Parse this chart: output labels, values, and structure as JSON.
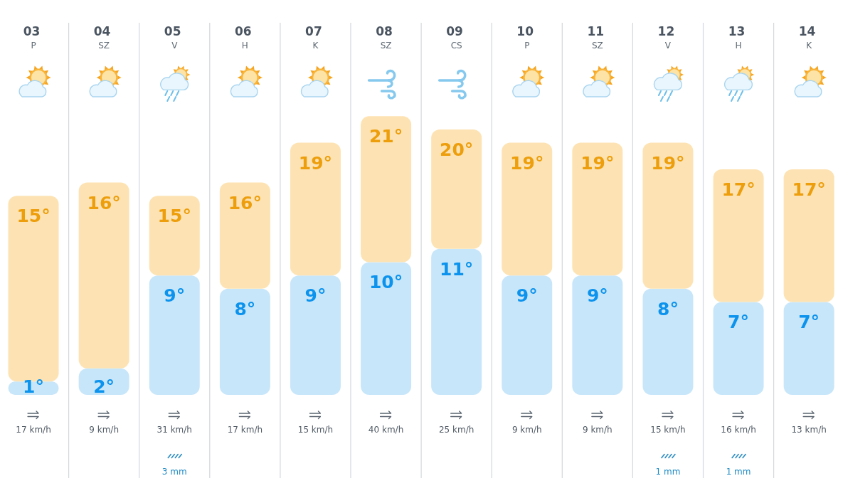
{
  "chart_data": {
    "type": "bar",
    "stacked": true,
    "categories": [
      "03\nP",
      "04\nSZ",
      "05\nV",
      "06\nH",
      "07\nK",
      "08\nSZ",
      "09\nCS",
      "10\nP",
      "11\nSZ",
      "12\nV",
      "13\nH",
      "14\nK"
    ],
    "series": [
      {
        "color": "#c8e6fa",
        "values": [
          1,
          2,
          9,
          8,
          9,
          10,
          11,
          9,
          9,
          8,
          7,
          7
        ],
        "value_labels": [
          "1°",
          "2°",
          "9°",
          "8°",
          "9°",
          "10°",
          "11°",
          "9°",
          "9°",
          "8°",
          "7°",
          "7°"
        ]
      },
      {
        "color": "#fde3b3",
        "values": [
          14,
          14,
          6,
          8,
          10,
          11,
          9,
          10,
          10,
          11,
          10,
          10
        ]
      }
    ],
    "totals": [
      "15°",
      "16°",
      "15°",
      "16°",
      "19°",
      "21°",
      "20°",
      "19°",
      "19°",
      "19°",
      "17°",
      "17°"
    ],
    "grid": "x",
    "tick_labels": "x",
    "annotations": [
      "17 km/h",
      "9 km/h",
      "31 km/h",
      "17 km/h",
      "15 km/h",
      "40 km/h",
      "25 km/h",
      "9 km/h",
      "9 km/h",
      "15 km/h",
      "16 km/h",
      "13 km/h",
      "3 mm",
      "1 mm",
      "1 mm"
    ]
  }
}
